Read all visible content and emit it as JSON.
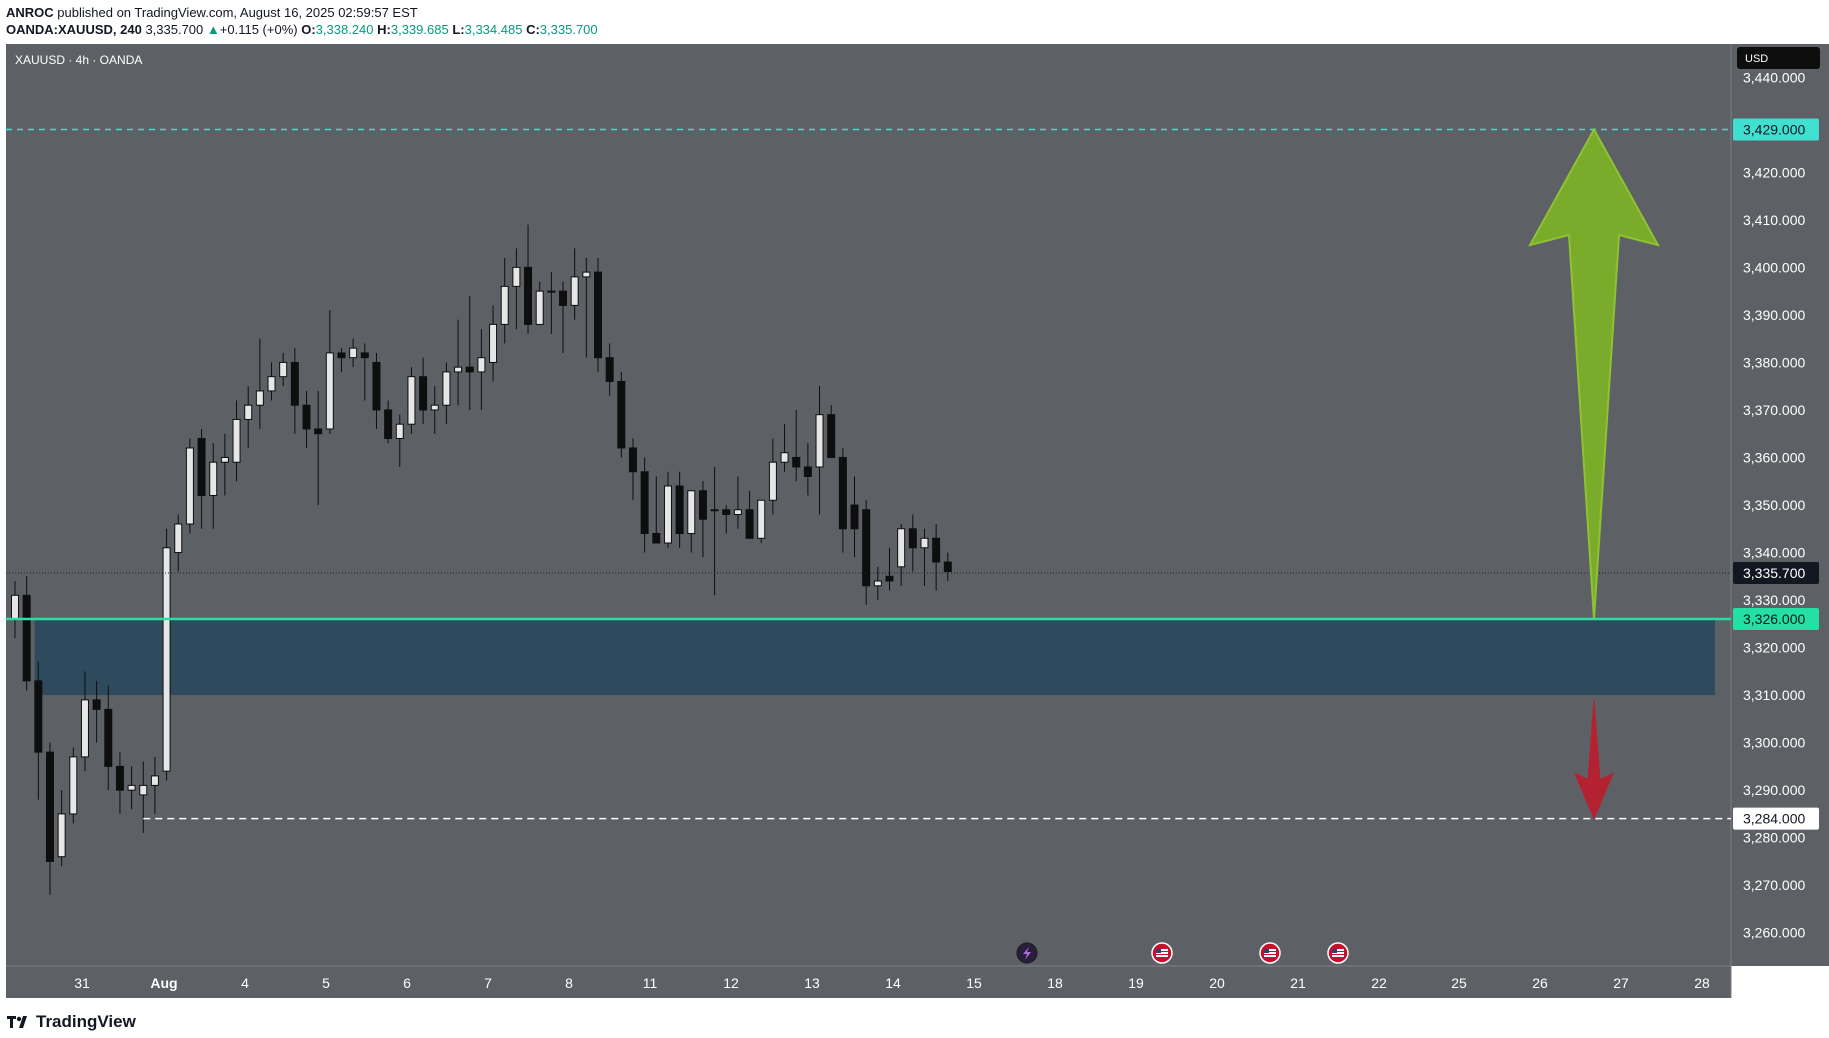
{
  "header": {
    "author": "ANROC",
    "published_text": "published on TradingView.com, August 16, 2025 02:59:57 EST",
    "symbol_line": "OANDA:XAUUSD, 240",
    "last_price": "3,335.700",
    "change": "+0.115 (+0%)",
    "open_label": "O:",
    "open": "3,338.240",
    "high_label": "H:",
    "high": "3,339.685",
    "low_label": "L:",
    "low": "3,334.485",
    "close_label": "C:",
    "close": "3,335.700"
  },
  "chart_title": "XAUUSD · 4h · OANDA",
  "currency": "USD",
  "footer": {
    "brand": "TradingView"
  },
  "colors": {
    "background": "#5d6166",
    "bull_body": "#e6e6e6",
    "bear_body": "#0e0e0e",
    "wick": "#0e0e0e",
    "zone": "#2e4b5e",
    "support_line": "#24e0a2",
    "target_line": "#40e0d0",
    "green_arrow": "#7bab2b",
    "red_arrow": "#b42232",
    "current_price_tag": "#131722"
  },
  "chart_data": {
    "type": "candlestick",
    "title": "XAUUSD · 4h · OANDA",
    "ylim": [
      3253,
      3447
    ],
    "y_ticks": [
      3260,
      3270,
      3280,
      3290,
      3300,
      3310,
      3320,
      3330,
      3340,
      3350,
      3360,
      3370,
      3380,
      3390,
      3400,
      3410,
      3420,
      3430,
      3440
    ],
    "y_tick_labels": [
      "3,260.000",
      "3,270.000",
      "3,280.000",
      "3,290.000",
      "3,300.000",
      "3,310.000",
      "3,320.000",
      "3,330.000",
      "3,340.000",
      "3,350.000",
      "3,360.000",
      "3,370.000",
      "3,380.000",
      "3,390.000",
      "3,400.000",
      "3,410.000",
      "3,420.000",
      "3,430.000",
      "3,440.000"
    ],
    "x_labels": [
      "31",
      "Aug",
      "4",
      "5",
      "6",
      "7",
      "8",
      "11",
      "12",
      "13",
      "14",
      "15",
      "18",
      "19",
      "20",
      "21",
      "22",
      "25",
      "26",
      "27",
      "28"
    ],
    "candles": [
      {
        "o": 3326,
        "h": 3334,
        "l": 3322,
        "c": 3331
      },
      {
        "o": 3331,
        "h": 3335,
        "l": 3311,
        "c": 3313
      },
      {
        "o": 3313,
        "h": 3317,
        "l": 3288,
        "c": 3298
      },
      {
        "o": 3298,
        "h": 3300,
        "l": 3268,
        "c": 3275
      },
      {
        "o": 3276,
        "h": 3290,
        "l": 3274,
        "c": 3285
      },
      {
        "o": 3285,
        "h": 3299,
        "l": 3283,
        "c": 3297
      },
      {
        "o": 3297,
        "h": 3315,
        "l": 3294,
        "c": 3309
      },
      {
        "o": 3309,
        "h": 3313,
        "l": 3300,
        "c": 3307
      },
      {
        "o": 3307,
        "h": 3312,
        "l": 3290,
        "c": 3295
      },
      {
        "o": 3295,
        "h": 3298,
        "l": 3285,
        "c": 3290
      },
      {
        "o": 3290,
        "h": 3295,
        "l": 3286,
        "c": 3291
      },
      {
        "o": 3289,
        "h": 3296,
        "l": 3281,
        "c": 3291
      },
      {
        "o": 3291,
        "h": 3297,
        "l": 3285,
        "c": 3293
      },
      {
        "o": 3294,
        "h": 3345,
        "l": 3292,
        "c": 3341
      },
      {
        "o": 3340,
        "h": 3348,
        "l": 3336,
        "c": 3346
      },
      {
        "o": 3346,
        "h": 3364,
        "l": 3344,
        "c": 3362
      },
      {
        "o": 3364,
        "h": 3366,
        "l": 3345,
        "c": 3352
      },
      {
        "o": 3352,
        "h": 3363,
        "l": 3345,
        "c": 3359
      },
      {
        "o": 3359,
        "h": 3365,
        "l": 3352,
        "c": 3360
      },
      {
        "o": 3359,
        "h": 3372,
        "l": 3355,
        "c": 3368
      },
      {
        "o": 3368,
        "h": 3375,
        "l": 3362,
        "c": 3371
      },
      {
        "o": 3371,
        "h": 3385,
        "l": 3366,
        "c": 3374
      },
      {
        "o": 3374,
        "h": 3380,
        "l": 3372,
        "c": 3377
      },
      {
        "o": 3377,
        "h": 3382,
        "l": 3375,
        "c": 3380
      },
      {
        "o": 3380,
        "h": 3383,
        "l": 3365,
        "c": 3371
      },
      {
        "o": 3371,
        "h": 3374,
        "l": 3362,
        "c": 3366
      },
      {
        "o": 3366,
        "h": 3374,
        "l": 3350,
        "c": 3365
      },
      {
        "o": 3366,
        "h": 3391,
        "l": 3365,
        "c": 3382
      },
      {
        "o": 3382,
        "h": 3383,
        "l": 3378,
        "c": 3381
      },
      {
        "o": 3381,
        "h": 3385,
        "l": 3379,
        "c": 3383
      },
      {
        "o": 3382,
        "h": 3384,
        "l": 3372,
        "c": 3381
      },
      {
        "o": 3380,
        "h": 3382,
        "l": 3366,
        "c": 3370
      },
      {
        "o": 3370,
        "h": 3372,
        "l": 3363,
        "c": 3364
      },
      {
        "o": 3364,
        "h": 3369,
        "l": 3358,
        "c": 3367
      },
      {
        "o": 3367,
        "h": 3379,
        "l": 3365,
        "c": 3377
      },
      {
        "o": 3377,
        "h": 3381,
        "l": 3367,
        "c": 3370
      },
      {
        "o": 3370,
        "h": 3375,
        "l": 3365,
        "c": 3371
      },
      {
        "o": 3371,
        "h": 3380,
        "l": 3367,
        "c": 3378
      },
      {
        "o": 3378,
        "h": 3389,
        "l": 3371,
        "c": 3379
      },
      {
        "o": 3379,
        "h": 3394,
        "l": 3370,
        "c": 3378
      },
      {
        "o": 3378,
        "h": 3387,
        "l": 3370,
        "c": 3381
      },
      {
        "o": 3380,
        "h": 3392,
        "l": 3376,
        "c": 3388
      },
      {
        "o": 3388,
        "h": 3402,
        "l": 3384,
        "c": 3396
      },
      {
        "o": 3396,
        "h": 3404,
        "l": 3387,
        "c": 3400
      },
      {
        "o": 3400,
        "h": 3409,
        "l": 3386,
        "c": 3388
      },
      {
        "o": 3388,
        "h": 3397,
        "l": 3388,
        "c": 3395
      },
      {
        "o": 3395,
        "h": 3399,
        "l": 3386,
        "c": 3395
      },
      {
        "o": 3395,
        "h": 3397,
        "l": 3382,
        "c": 3392
      },
      {
        "o": 3392,
        "h": 3404,
        "l": 3389,
        "c": 3398
      },
      {
        "o": 3398,
        "h": 3402,
        "l": 3381,
        "c": 3399
      },
      {
        "o": 3399,
        "h": 3402,
        "l": 3378,
        "c": 3381
      },
      {
        "o": 3381,
        "h": 3384,
        "l": 3373,
        "c": 3376
      },
      {
        "o": 3376,
        "h": 3378,
        "l": 3360,
        "c": 3362
      },
      {
        "o": 3362,
        "h": 3364,
        "l": 3351,
        "c": 3357
      },
      {
        "o": 3357,
        "h": 3360,
        "l": 3340,
        "c": 3344
      },
      {
        "o": 3344,
        "h": 3356,
        "l": 3342,
        "c": 3342
      },
      {
        "o": 3342,
        "h": 3357,
        "l": 3341,
        "c": 3354
      },
      {
        "o": 3354,
        "h": 3357,
        "l": 3341,
        "c": 3344
      },
      {
        "o": 3344,
        "h": 3352,
        "l": 3340,
        "c": 3353
      },
      {
        "o": 3353,
        "h": 3355,
        "l": 3339,
        "c": 3347
      },
      {
        "o": 3349,
        "h": 3358,
        "l": 3331,
        "c": 3349
      },
      {
        "o": 3349,
        "h": 3350,
        "l": 3344,
        "c": 3348
      },
      {
        "o": 3348,
        "h": 3356,
        "l": 3345,
        "c": 3349
      },
      {
        "o": 3349,
        "h": 3353,
        "l": 3343,
        "c": 3343
      },
      {
        "o": 3343,
        "h": 3350,
        "l": 3342,
        "c": 3351
      },
      {
        "o": 3351,
        "h": 3364,
        "l": 3348,
        "c": 3359
      },
      {
        "o": 3359,
        "h": 3367,
        "l": 3357,
        "c": 3361
      },
      {
        "o": 3360,
        "h": 3370,
        "l": 3355,
        "c": 3358
      },
      {
        "o": 3358,
        "h": 3363,
        "l": 3352,
        "c": 3356
      },
      {
        "o": 3358,
        "h": 3375,
        "l": 3348,
        "c": 3369
      },
      {
        "o": 3369,
        "h": 3371,
        "l": 3361,
        "c": 3360
      },
      {
        "o": 3360,
        "h": 3362,
        "l": 3340,
        "c": 3345
      },
      {
        "o": 3350,
        "h": 3356,
        "l": 3339,
        "c": 3345
      },
      {
        "o": 3349,
        "h": 3351,
        "l": 3329,
        "c": 3333
      },
      {
        "o": 3333,
        "h": 3337,
        "l": 3330,
        "c": 3334
      },
      {
        "o": 3335,
        "h": 3341,
        "l": 3332,
        "c": 3334
      },
      {
        "o": 3337,
        "h": 3346,
        "l": 3333,
        "c": 3345
      },
      {
        "o": 3345,
        "h": 3348,
        "l": 3336,
        "c": 3341
      },
      {
        "o": 3341,
        "h": 3345,
        "l": 3333,
        "c": 3343
      },
      {
        "o": 3343,
        "h": 3346,
        "l": 3332,
        "c": 3338
      },
      {
        "o": 3338,
        "h": 3340,
        "l": 3334,
        "c": 3336
      }
    ],
    "current_price": 3335.7,
    "current_price_label": "3,335.700",
    "levels": [
      {
        "value": 3429,
        "label": "3,429.000",
        "style": "dashed",
        "color": "#40e0d0"
      },
      {
        "value": 3326,
        "label": "3,326.000",
        "style": "solid",
        "color": "#24e0a2"
      },
      {
        "value": 3284,
        "label": "3,284.000",
        "style": "dashed",
        "color": "#ffffff"
      }
    ],
    "zone": {
      "from": 3310,
      "to": 3326
    },
    "arrows": [
      {
        "from": 3326,
        "to": 3429,
        "color": "#7bab2b",
        "direction": "up"
      },
      {
        "from": 3309,
        "to": 3284,
        "color": "#b42232",
        "direction": "down"
      }
    ],
    "events": [
      "lightning",
      "us-flag",
      "us-flag",
      "us-flag"
    ]
  }
}
